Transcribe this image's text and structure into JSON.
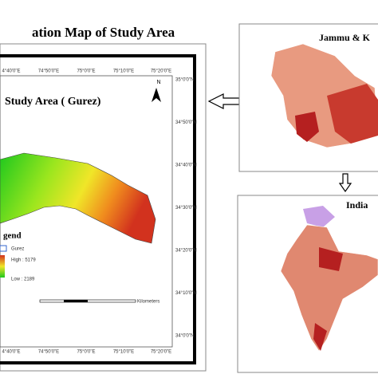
{
  "title": "ation Map of Study Area",
  "inset_title": "Study Area ( Gurez)",
  "north": "N",
  "legend": {
    "title": "gend",
    "items": [
      "Gurez",
      "High : 5179",
      "Low : 2189"
    ]
  },
  "scale_unit": "Kilometers",
  "top_ticks": [
    "4°40'0\"E",
    "74°50'0\"E",
    "75°0'0\"E",
    "75°10'0\"E",
    "75°20'0\"E"
  ],
  "bottom_ticks": [
    "4°40'0\"E",
    "74°50'0\"E",
    "75°0'0\"E",
    "75°10'0\"E",
    "75°20'0\"E"
  ],
  "right_ticks": [
    "35°0'0\"N",
    "34°50'0\"N",
    "34°40'0\"N",
    "34°30'0\"N",
    "34°20'0\"N",
    "34°10'0\"N",
    "34°0'0\"N"
  ],
  "panels": [
    "Jammu & K",
    "India"
  ]
}
